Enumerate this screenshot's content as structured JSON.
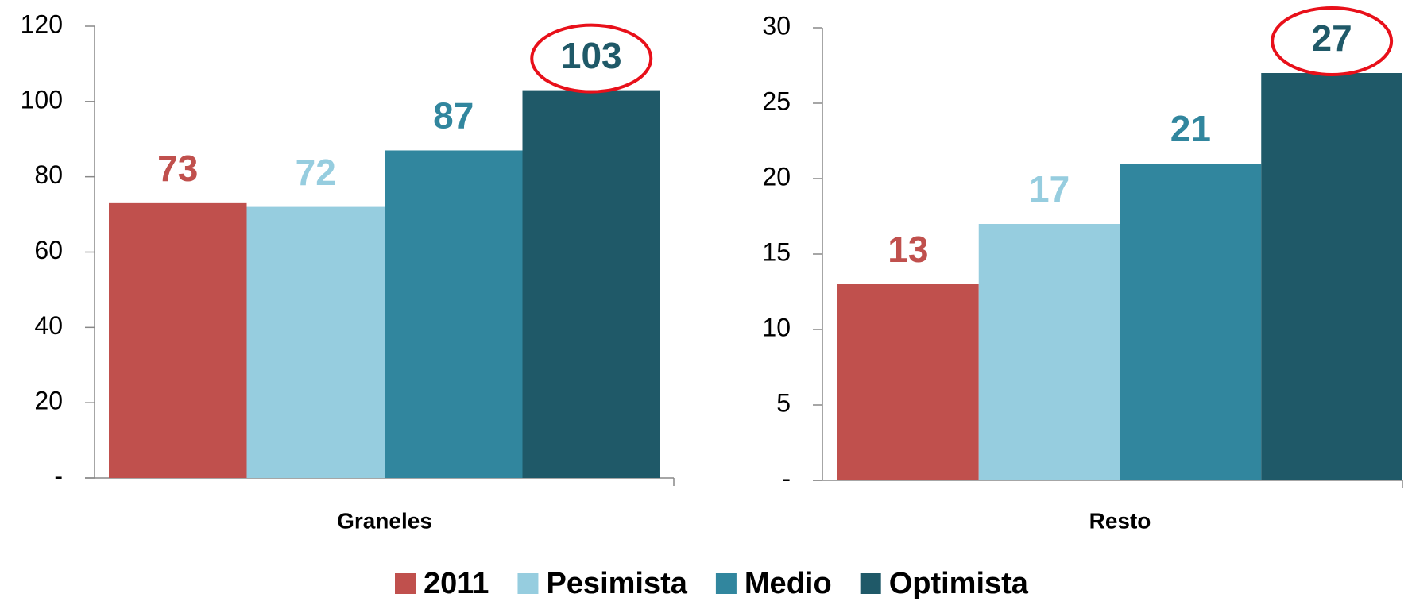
{
  "chart_data": [
    {
      "type": "bar",
      "categories": [
        "Graneles"
      ],
      "series": [
        {
          "name": "2011",
          "color": "#c0504d",
          "values": [
            73
          ]
        },
        {
          "name": "Pesimista",
          "color": "#96cddf",
          "values": [
            72
          ]
        },
        {
          "name": "Medio",
          "color": "#31869e",
          "values": [
            87
          ]
        },
        {
          "name": "Optimista",
          "color": "#1f5968",
          "values": [
            103
          ]
        }
      ],
      "ylim": [
        0,
        120
      ],
      "yticks": [
        {
          "value": 0,
          "label": "-"
        },
        20,
        40,
        60,
        80,
        100,
        120
      ]
    },
    {
      "type": "bar",
      "categories": [
        "Resto"
      ],
      "series": [
        {
          "color": "#c0504d",
          "values": [
            13
          ]
        },
        {
          "color": "#96cddf",
          "values": [
            17
          ]
        },
        {
          "color": "#31869e",
          "values": [
            21
          ]
        },
        {
          "color": "#1f5968",
          "values": [
            27
          ]
        }
      ],
      "ylim": [
        0,
        30
      ],
      "yticks": [
        {
          "value": 0,
          "label": "-"
        },
        5,
        10,
        15,
        20,
        25,
        30
      ]
    }
  ]
}
